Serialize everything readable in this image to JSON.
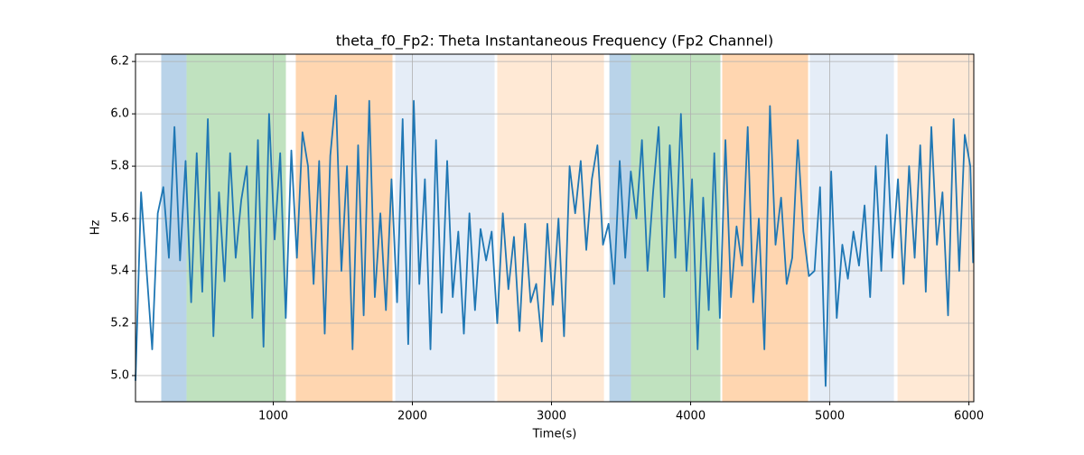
{
  "chart_data": {
    "type": "line",
    "title": "theta_f0_Fp2: Theta Instantaneous Frequency (Fp2 Channel)",
    "x_label": "Time(s)",
    "y_label": "Hz",
    "xlim": [
      10,
      6035
    ],
    "ylim": [
      4.9,
      6.228
    ],
    "xticks": [
      1000,
      2000,
      3000,
      4000,
      5000,
      6000
    ],
    "yticks": [
      {
        "value": 5,
        "label": "5.0"
      },
      5.2,
      5.4,
      5.6,
      5.8,
      {
        "value": 6,
        "label": "6.0"
      },
      6.2
    ],
    "grid": true,
    "spans": [
      {
        "start": 195,
        "end": 377,
        "color": "#b9d3e9"
      },
      {
        "start": 377,
        "end": 1091,
        "color": "#c0e2bf"
      },
      {
        "start": 1162,
        "end": 1857,
        "color": "#ffd6b0"
      },
      {
        "start": 1877,
        "end": 2591,
        "color": "#e5edf7"
      },
      {
        "start": 2610,
        "end": 3377,
        "color": "#ffe9d5"
      },
      {
        "start": 3416,
        "end": 3571,
        "color": "#b9d3e9"
      },
      {
        "start": 3571,
        "end": 4214,
        "color": "#c0e2bf"
      },
      {
        "start": 4227,
        "end": 4844,
        "color": "#ffd6b0"
      },
      {
        "start": 4857,
        "end": 5461,
        "color": "#e5edf7"
      },
      {
        "start": 5487,
        "end": 6035,
        "color": "#ffe9d5"
      }
    ],
    "series": [
      {
        "name": "theta_f0_Fp2",
        "color": "#1f77b4",
        "x": [
          10,
          50,
          90,
          130,
          170,
          210,
          250,
          290,
          330,
          370,
          410,
          450,
          490,
          530,
          570,
          610,
          650,
          690,
          730,
          770,
          810,
          850,
          890,
          930,
          970,
          1010,
          1050,
          1090,
          1130,
          1170,
          1210,
          1250,
          1290,
          1330,
          1370,
          1410,
          1450,
          1490,
          1530,
          1570,
          1610,
          1650,
          1690,
          1730,
          1770,
          1810,
          1850,
          1890,
          1930,
          1970,
          2010,
          2050,
          2090,
          2130,
          2170,
          2210,
          2250,
          2290,
          2330,
          2370,
          2410,
          2450,
          2490,
          2530,
          2570,
          2610,
          2650,
          2690,
          2730,
          2770,
          2810,
          2850,
          2890,
          2930,
          2970,
          3010,
          3050,
          3090,
          3130,
          3170,
          3210,
          3250,
          3290,
          3330,
          3370,
          3410,
          3450,
          3490,
          3530,
          3570,
          3610,
          3650,
          3690,
          3730,
          3770,
          3810,
          3850,
          3890,
          3930,
          3970,
          4010,
          4050,
          4090,
          4130,
          4170,
          4210,
          4250,
          4290,
          4330,
          4370,
          4410,
          4450,
          4490,
          4530,
          4570,
          4610,
          4650,
          4690,
          4730,
          4770,
          4810,
          4850,
          4890,
          4930,
          4970,
          5010,
          5050,
          5090,
          5130,
          5170,
          5210,
          5250,
          5290,
          5330,
          5370,
          5410,
          5450,
          5490,
          5530,
          5570,
          5610,
          5650,
          5690,
          5730,
          5770,
          5810,
          5850,
          5890,
          5930,
          5970,
          6010,
          6030
        ],
        "values": [
          4.98,
          5.7,
          5.4,
          5.1,
          5.62,
          5.72,
          5.45,
          5.95,
          5.44,
          5.82,
          5.28,
          5.85,
          5.32,
          5.98,
          5.15,
          5.7,
          5.36,
          5.85,
          5.45,
          5.67,
          5.8,
          5.22,
          5.9,
          5.11,
          6.0,
          5.52,
          5.85,
          5.22,
          5.86,
          5.45,
          5.93,
          5.8,
          5.35,
          5.82,
          5.16,
          5.84,
          6.07,
          5.4,
          5.8,
          5.1,
          5.88,
          5.23,
          6.05,
          5.3,
          5.62,
          5.25,
          5.75,
          5.28,
          5.98,
          5.12,
          6.05,
          5.35,
          5.75,
          5.1,
          5.9,
          5.24,
          5.82,
          5.3,
          5.55,
          5.16,
          5.62,
          5.25,
          5.56,
          5.44,
          5.55,
          5.2,
          5.62,
          5.33,
          5.53,
          5.17,
          5.58,
          5.28,
          5.35,
          5.13,
          5.58,
          5.27,
          5.6,
          5.15,
          5.8,
          5.62,
          5.82,
          5.48,
          5.75,
          5.88,
          5.5,
          5.58,
          5.35,
          5.82,
          5.45,
          5.78,
          5.6,
          5.9,
          5.4,
          5.7,
          5.95,
          5.3,
          5.88,
          5.45,
          6.0,
          5.4,
          5.75,
          5.1,
          5.68,
          5.25,
          5.85,
          5.22,
          5.9,
          5.3,
          5.57,
          5.42,
          5.95,
          5.28,
          5.6,
          5.1,
          6.03,
          5.5,
          5.68,
          5.35,
          5.45,
          5.9,
          5.55,
          5.38,
          5.4,
          5.72,
          4.96,
          5.78,
          5.22,
          5.5,
          5.37,
          5.55,
          5.42,
          5.65,
          5.3,
          5.8,
          5.4,
          5.92,
          5.45,
          5.75,
          5.35,
          5.8,
          5.45,
          5.88,
          5.32,
          5.95,
          5.5,
          5.7,
          5.23,
          5.98,
          5.4,
          5.92,
          5.8,
          5.43
        ]
      }
    ]
  }
}
